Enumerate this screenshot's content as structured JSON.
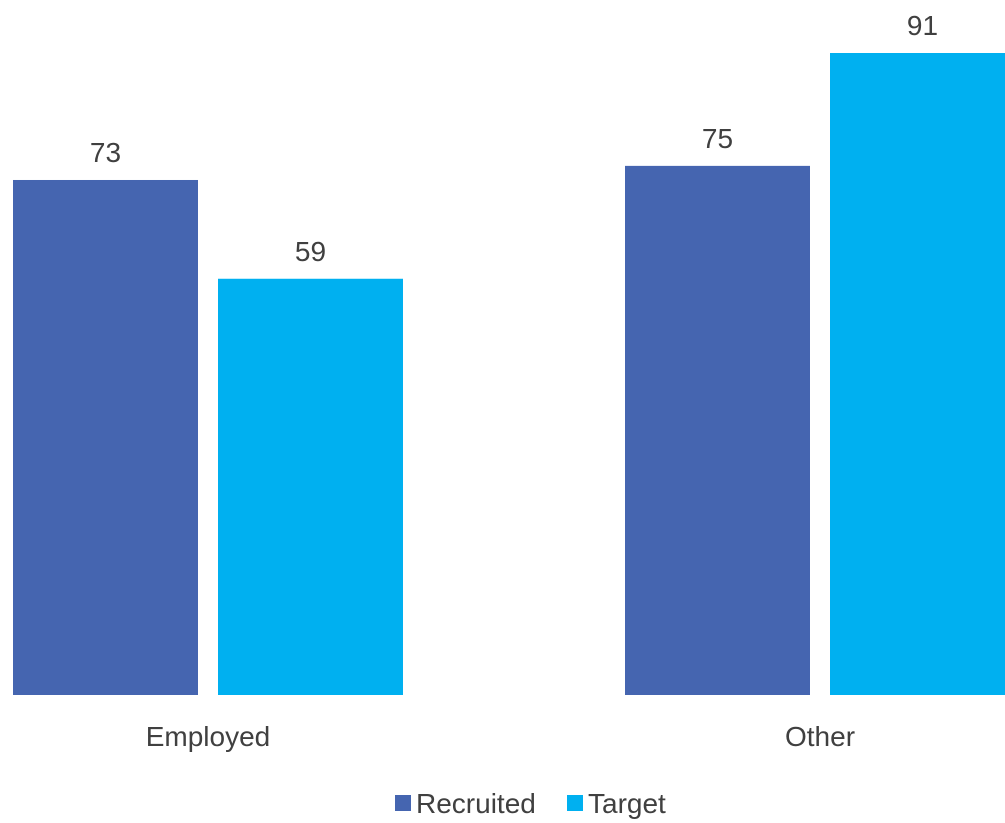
{
  "chart_data": {
    "type": "bar",
    "title": "",
    "xlabel": "",
    "ylabel": "",
    "categories": [
      "Employed",
      "Other"
    ],
    "series": [
      {
        "name": "Recruited",
        "color": "#4565B0",
        "values": [
          73,
          75
        ]
      },
      {
        "name": "Target",
        "color": "#00B0F0",
        "values": [
          59,
          91
        ]
      }
    ],
    "ylim": [
      0,
      91
    ],
    "grid": false,
    "legend": "bottom",
    "data_labels": true
  }
}
